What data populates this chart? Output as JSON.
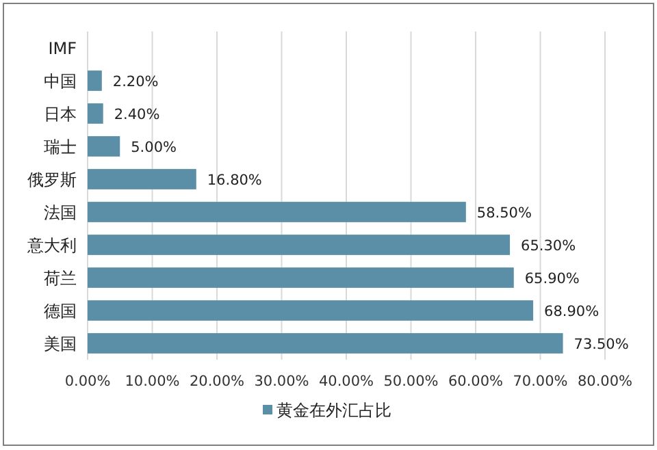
{
  "chart_data": {
    "type": "bar",
    "orientation": "horizontal",
    "categories": [
      "IMF",
      "中国",
      "日本",
      "瑞士",
      "俄罗斯",
      "法国",
      "意大利",
      "荷兰",
      "德国",
      "美国"
    ],
    "series": [
      {
        "name": "黄金在外汇占比",
        "color": "#5b8fa8",
        "values": [
          null,
          2.2,
          2.4,
          5.0,
          16.8,
          58.5,
          65.3,
          65.9,
          68.9,
          73.5
        ],
        "value_labels": [
          null,
          "2.20%",
          "2.40%",
          "5.00%",
          "16.80%",
          "58.50%",
          "65.30%",
          "65.90%",
          "68.90%",
          "73.50%"
        ]
      }
    ],
    "xlim": [
      0,
      80
    ],
    "xticks": [
      {
        "value": 0,
        "label": "0.00%"
      },
      {
        "value": 10,
        "label": "10.00%"
      },
      {
        "value": 20,
        "label": "20.00%"
      },
      {
        "value": 30,
        "label": "30.00%"
      },
      {
        "value": 40,
        "label": "40.00%"
      },
      {
        "value": 50,
        "label": "50.00%"
      },
      {
        "value": 60,
        "label": "60.00%"
      },
      {
        "value": 70,
        "label": "70.00%"
      },
      {
        "value": 80,
        "label": "80.00%"
      }
    ],
    "grid": "x",
    "legend": "bottom"
  }
}
